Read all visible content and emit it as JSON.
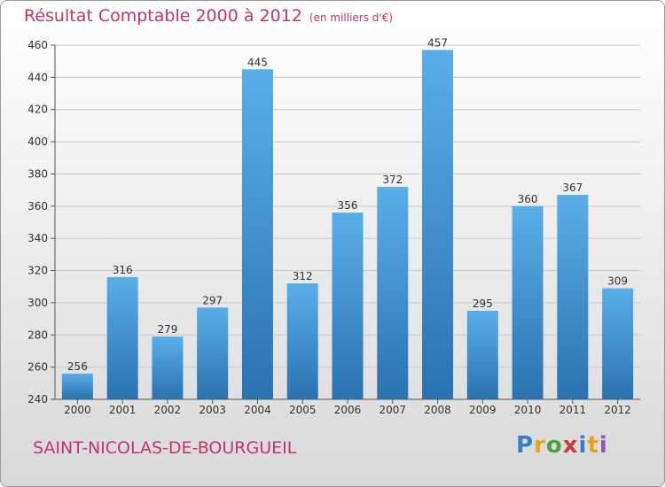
{
  "header": {
    "title": "Résultat Comptable 2000 à 2012",
    "subtitle": "(en milliers d'€)"
  },
  "footer": {
    "town": "SAINT-NICOLAS-DE-BOURGUEIL",
    "brand": "Proxiti"
  },
  "colors": {
    "title": "#c2356e",
    "bar_top": "#5aaee8",
    "bar_bottom": "#2a72b0",
    "grid": "#c8c8c8"
  },
  "chart_data": {
    "type": "bar",
    "title": "Résultat Comptable 2000 à 2012",
    "categories": [
      "2000",
      "2001",
      "2002",
      "2003",
      "2004",
      "2005",
      "2006",
      "2007",
      "2008",
      "2009",
      "2010",
      "2011",
      "2012"
    ],
    "values": [
      256,
      316,
      279,
      297,
      445,
      312,
      356,
      372,
      457,
      295,
      360,
      367,
      309
    ],
    "ylim": [
      240,
      460
    ],
    "yticks": [
      240,
      260,
      280,
      300,
      320,
      340,
      360,
      380,
      400,
      420,
      440,
      460
    ],
    "grid": true,
    "xlabel": "",
    "ylabel": ""
  }
}
